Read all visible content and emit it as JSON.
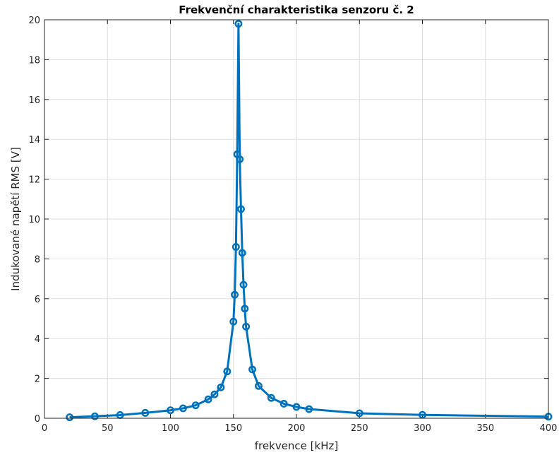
{
  "chart_data": {
    "type": "line",
    "title": "Frekvenční charakteristika senzoru č. 2",
    "xlabel": "frekvence [kHz]",
    "ylabel": "Indukované napětí RMS [V]",
    "xlim": [
      0,
      400
    ],
    "ylim": [
      0,
      20
    ],
    "xticks": [
      0,
      50,
      100,
      150,
      200,
      250,
      300,
      350,
      400
    ],
    "yticks": [
      0,
      2,
      4,
      6,
      8,
      10,
      12,
      14,
      16,
      18,
      20
    ],
    "grid": true,
    "series_color": "#0072BD",
    "series": [
      {
        "x": [
          20,
          40,
          60,
          80,
          100,
          110,
          120,
          130,
          135,
          140,
          145,
          150,
          151,
          152,
          153,
          154,
          155,
          156,
          157,
          158,
          159,
          160,
          165,
          170,
          180,
          190,
          200,
          210,
          250,
          300,
          400
        ],
        "y": [
          0.05,
          0.1,
          0.16,
          0.27,
          0.4,
          0.5,
          0.65,
          0.95,
          1.2,
          1.55,
          2.35,
          4.85,
          6.2,
          8.6,
          13.25,
          19.8,
          13.0,
          10.5,
          8.3,
          6.7,
          5.5,
          4.6,
          2.45,
          1.62,
          1.02,
          0.73,
          0.57,
          0.46,
          0.25,
          0.17,
          0.08
        ]
      }
    ]
  }
}
